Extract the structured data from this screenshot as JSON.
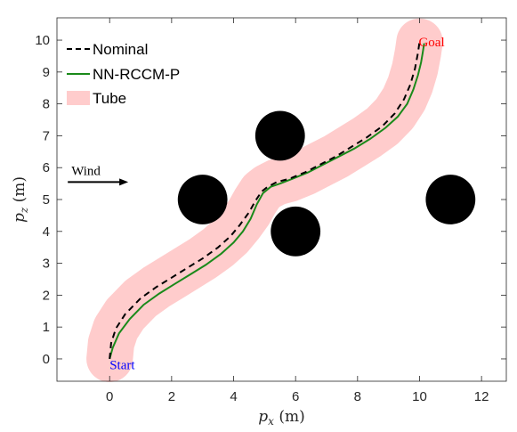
{
  "chart_data": {
    "type": "line",
    "xlabel": "p_x (m)",
    "ylabel": "p_z (m)",
    "xlabel_parts": {
      "var": "p",
      "sub": "x",
      "unit": "(m)"
    },
    "ylabel_parts": {
      "var": "p",
      "sub": "z",
      "unit": "(m)"
    },
    "xlim": [
      -1.7,
      12.8
    ],
    "ylim": [
      -0.7,
      10.7
    ],
    "xticks": [
      0,
      2,
      4,
      6,
      8,
      10,
      12
    ],
    "yticks": [
      0,
      1,
      2,
      3,
      4,
      5,
      6,
      7,
      8,
      9,
      10
    ],
    "grid": false,
    "legend_position": "top-left",
    "series": [
      {
        "name": "Nominal",
        "style": "dashed",
        "color": "#000000",
        "x": [
          0.0,
          0.05,
          0.2,
          0.5,
          1.0,
          1.5,
          2.0,
          2.5,
          3.0,
          3.5,
          3.9,
          4.2,
          4.5,
          4.7,
          4.9,
          5.1,
          5.4,
          5.8,
          6.3,
          6.8,
          7.3,
          7.8,
          8.3,
          8.8,
          9.2,
          9.5,
          9.7,
          9.85,
          9.95,
          10.0
        ],
        "y": [
          0.0,
          0.5,
          0.95,
          1.4,
          1.9,
          2.25,
          2.55,
          2.85,
          3.15,
          3.5,
          3.85,
          4.2,
          4.6,
          4.95,
          5.25,
          5.4,
          5.55,
          5.65,
          5.85,
          6.1,
          6.35,
          6.65,
          6.95,
          7.3,
          7.7,
          8.15,
          8.6,
          9.1,
          9.6,
          9.95
        ]
      },
      {
        "name": "NN-RCCM-P",
        "style": "solid",
        "color": "#1a8a1a",
        "x": [
          0.0,
          0.1,
          0.3,
          0.65,
          1.1,
          1.6,
          2.1,
          2.6,
          3.1,
          3.6,
          4.0,
          4.3,
          4.55,
          4.75,
          4.95,
          5.2,
          5.5,
          5.9,
          6.4,
          6.9,
          7.4,
          7.9,
          8.4,
          8.9,
          9.3,
          9.6,
          9.8,
          9.95,
          10.05,
          10.1,
          10.15
        ],
        "y": [
          0.0,
          0.35,
          0.8,
          1.25,
          1.7,
          2.05,
          2.35,
          2.65,
          2.95,
          3.3,
          3.65,
          4.0,
          4.4,
          4.85,
          5.2,
          5.4,
          5.5,
          5.65,
          5.85,
          6.1,
          6.35,
          6.6,
          6.9,
          7.25,
          7.6,
          8.0,
          8.45,
          8.9,
          9.3,
          9.6,
          9.9
        ]
      },
      {
        "name": "Tube",
        "style": "band",
        "color": "#ffcccc",
        "half_width_data": 0.75
      }
    ],
    "obstacles": [
      {
        "cx": 3.0,
        "cy": 5.0,
        "r": 0.8
      },
      {
        "cx": 5.5,
        "cy": 7.0,
        "r": 0.8
      },
      {
        "cx": 6.0,
        "cy": 4.0,
        "r": 0.8
      },
      {
        "cx": 11.0,
        "cy": 5.0,
        "r": 0.8
      }
    ],
    "annotations": {
      "start": {
        "text": "Start",
        "x": 0.0,
        "y": -0.05,
        "color": "#0000ff"
      },
      "goal": {
        "text": "Goal",
        "x": 10.0,
        "y": 9.95,
        "color": "#ff0000"
      },
      "wind": {
        "text": "Wind",
        "x0": -1.35,
        "x1": 0.6,
        "y": 5.55
      }
    }
  }
}
